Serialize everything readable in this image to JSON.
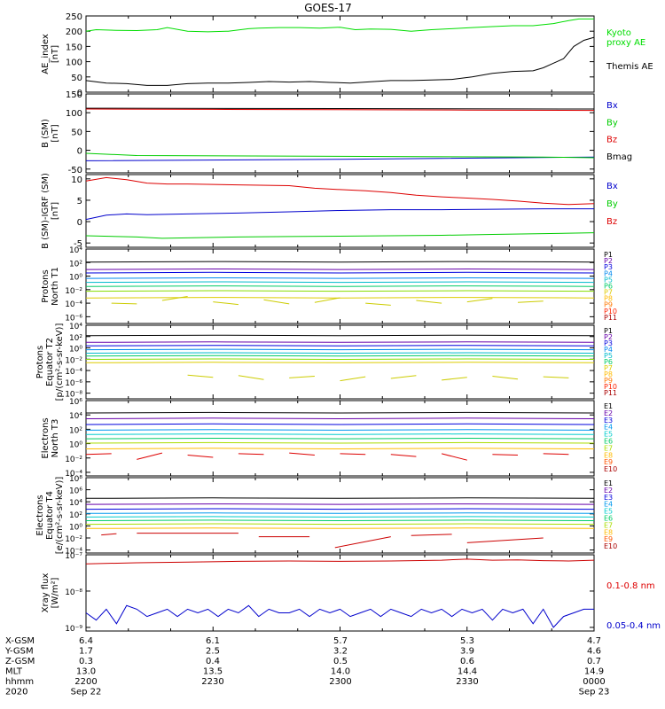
{
  "title": "GOES-17",
  "chart_data": [
    {
      "type": "line",
      "ylabel": [
        "AE_index",
        "[nT]"
      ],
      "yticks": [
        "250",
        "200",
        "150",
        "100",
        "50",
        "0"
      ],
      "ylim": [
        0,
        250
      ],
      "legend": [
        {
          "text": "Kyoto",
          "color": "#00dd00"
        },
        {
          "text": "proxy AE",
          "color": "#00dd00"
        },
        {
          "text": "Themis AE",
          "color": "#000000"
        }
      ],
      "series": [
        {
          "name": "Kyoto proxy AE",
          "color": "#00dd00",
          "x": [
            0,
            0.02,
            0.06,
            0.1,
            0.14,
            0.16,
            0.2,
            0.24,
            0.28,
            0.32,
            0.34,
            0.38,
            0.42,
            0.46,
            0.5,
            0.53,
            0.56,
            0.6,
            0.64,
            0.68,
            0.72,
            0.76,
            0.8,
            0.84,
            0.88,
            0.92,
            0.95,
            0.97,
            1
          ],
          "y": [
            200,
            205,
            203,
            202,
            205,
            212,
            200,
            198,
            200,
            208,
            210,
            212,
            212,
            210,
            213,
            205,
            207,
            206,
            200,
            205,
            208,
            212,
            215,
            218,
            218,
            225,
            235,
            240,
            240
          ]
        },
        {
          "name": "Themis AE",
          "color": "#000000",
          "x": [
            0,
            0.04,
            0.08,
            0.12,
            0.16,
            0.2,
            0.24,
            0.28,
            0.32,
            0.36,
            0.4,
            0.44,
            0.48,
            0.52,
            0.56,
            0.6,
            0.64,
            0.68,
            0.72,
            0.76,
            0.8,
            0.84,
            0.88,
            0.9,
            0.92,
            0.94,
            0.96,
            0.98,
            1
          ],
          "y": [
            38,
            30,
            28,
            22,
            22,
            28,
            30,
            30,
            32,
            35,
            33,
            35,
            32,
            30,
            34,
            38,
            38,
            40,
            42,
            50,
            62,
            68,
            70,
            80,
            95,
            110,
            150,
            170,
            180
          ]
        }
      ]
    },
    {
      "type": "line",
      "ylabel": [
        "B (SM)",
        "[nT]"
      ],
      "yticks": [
        "150",
        "100",
        "50",
        "0",
        "-50"
      ],
      "ylim": [
        -60,
        150
      ],
      "legend": [
        {
          "text": "Bx",
          "color": "#0000cc"
        },
        {
          "text": "By",
          "color": "#00cc00"
        },
        {
          "text": "Bz",
          "color": "#dd0000"
        },
        {
          "text": "Bmag",
          "color": "#000000"
        }
      ],
      "series": [
        {
          "name": "Bmag",
          "color": "#000000",
          "x": [
            0,
            0.5,
            1
          ],
          "y": [
            112,
            111,
            110
          ]
        },
        {
          "name": "Bz",
          "color": "#dd0000",
          "x": [
            0,
            0.25,
            0.5,
            0.75,
            1
          ],
          "y": [
            110,
            109,
            108,
            107,
            106
          ]
        },
        {
          "name": "Bx",
          "color": "#0000cc",
          "x": [
            0,
            0.5,
            1
          ],
          "y": [
            -28,
            -24,
            -18
          ]
        },
        {
          "name": "By",
          "color": "#00cc00",
          "x": [
            0,
            0.1,
            0.5,
            0.9,
            1
          ],
          "y": [
            -8,
            -14,
            -16,
            -18,
            -20
          ]
        }
      ]
    },
    {
      "type": "line",
      "ylabel": [
        "B (SM)-IGRF (SM)",
        "[nT]"
      ],
      "yticks": [
        "10",
        "5",
        "0",
        "-5"
      ],
      "ylim": [
        -6,
        11
      ],
      "legend": [
        {
          "text": "Bx",
          "color": "#0000cc"
        },
        {
          "text": "By",
          "color": "#00cc00"
        },
        {
          "text": "Bz",
          "color": "#dd0000"
        }
      ],
      "series": [
        {
          "name": "Bz",
          "color": "#dd0000",
          "x": [
            0,
            0.04,
            0.08,
            0.12,
            0.16,
            0.2,
            0.3,
            0.4,
            0.45,
            0.5,
            0.55,
            0.6,
            0.65,
            0.7,
            0.75,
            0.8,
            0.85,
            0.9,
            0.95,
            1
          ],
          "y": [
            9.5,
            10.3,
            9.8,
            9.0,
            8.8,
            8.8,
            8.6,
            8.4,
            7.8,
            7.5,
            7.2,
            6.8,
            6.2,
            5.8,
            5.5,
            5.2,
            4.8,
            4.3,
            4.0,
            4.2
          ]
        },
        {
          "name": "Bx",
          "color": "#0000cc",
          "x": [
            0,
            0.04,
            0.08,
            0.12,
            0.2,
            0.3,
            0.4,
            0.5,
            0.6,
            0.7,
            0.8,
            0.9,
            1
          ],
          "y": [
            0.5,
            1.5,
            1.8,
            1.6,
            1.8,
            2.0,
            2.3,
            2.6,
            2.8,
            2.8,
            2.9,
            3.0,
            3.0
          ]
        },
        {
          "name": "By",
          "color": "#00cc00",
          "x": [
            0,
            0.1,
            0.15,
            0.2,
            0.3,
            0.4,
            0.5,
            0.6,
            0.7,
            0.8,
            0.9,
            1
          ],
          "y": [
            -3.3,
            -3.6,
            -3.9,
            -3.8,
            -3.6,
            -3.5,
            -3.4,
            -3.3,
            -3.2,
            -3.0,
            -2.8,
            -2.6
          ]
        }
      ]
    },
    {
      "type": "line",
      "log": true,
      "ylabel": [
        "Protons",
        "North T1"
      ],
      "yticks": [
        [
          4,
          "10⁴"
        ],
        [
          2,
          "10²"
        ],
        [
          0,
          "10⁰"
        ],
        [
          -2,
          "10⁻²"
        ],
        [
          -4,
          "10⁻⁴"
        ],
        [
          -6,
          "10⁻⁶"
        ]
      ],
      "ylim": [
        -7,
        4
      ],
      "legend": [
        {
          "text": "P1",
          "color": "#000000"
        },
        {
          "text": "P2",
          "color": "#6600aa"
        },
        {
          "text": "P3",
          "color": "#0000dd"
        },
        {
          "text": "P4",
          "color": "#0088ee"
        },
        {
          "text": "P5",
          "color": "#00bbcc"
        },
        {
          "text": "P6",
          "color": "#00cc66"
        },
        {
          "text": "P7",
          "color": "#ddcc00"
        },
        {
          "text": "P8",
          "color": "#ffbb00"
        },
        {
          "text": "P9",
          "color": "#ff7700"
        },
        {
          "text": "P10",
          "color": "#ff2200"
        },
        {
          "text": "P11",
          "color": "#aa0000"
        }
      ],
      "levels": [
        2.1,
        1.0,
        0.5,
        -0.3,
        -0.9,
        -1.5,
        -2.2,
        -3.2
      ],
      "noisy": {
        "color": "#cccc00",
        "x": [
          0.05,
          0.1,
          0.15,
          0.2,
          0.25,
          0.3,
          0.35,
          0.4,
          0.45,
          0.5,
          0.55,
          0.6,
          0.65,
          0.7,
          0.75,
          0.8,
          0.85,
          0.9,
          0.95
        ],
        "y": [
          -4.0,
          -4.1,
          -3.6,
          -3.0,
          -3.8,
          -4.2,
          -3.5,
          -4.1,
          -3.9,
          -3.2,
          -4.0,
          -4.3,
          -3.6,
          -4.0,
          -3.8,
          -3.3,
          -3.9,
          -3.7,
          -4.0
        ]
      }
    },
    {
      "type": "line",
      "log": true,
      "ylabel": [
        "Protons",
        "Equator T2",
        "[p/(cm²-s-sr-keV)]"
      ],
      "yticks": [
        [
          4,
          "10⁴"
        ],
        [
          2,
          "10²"
        ],
        [
          0,
          "10⁰"
        ],
        [
          -2,
          "10⁻²"
        ],
        [
          -4,
          "10⁻⁴"
        ],
        [
          -6,
          "10⁻⁶"
        ],
        [
          -8,
          "10⁻⁸"
        ]
      ],
      "ylim": [
        -9,
        4
      ],
      "legend": [
        {
          "text": "P1",
          "color": "#000000"
        },
        {
          "text": "P2",
          "color": "#6600aa"
        },
        {
          "text": "P3",
          "color": "#0000dd"
        },
        {
          "text": "P4",
          "color": "#0088ee"
        },
        {
          "text": "P5",
          "color": "#00bbcc"
        },
        {
          "text": "P6",
          "color": "#00cc66"
        },
        {
          "text": "P7",
          "color": "#ddcc00"
        },
        {
          "text": "P8",
          "color": "#ffbb00"
        },
        {
          "text": "P9",
          "color": "#ff7700"
        },
        {
          "text": "P10",
          "color": "#ff2200"
        },
        {
          "text": "P11",
          "color": "#aa0000"
        }
      ],
      "levels": [
        2.2,
        1.0,
        0.4,
        -0.3,
        -0.9,
        -1.4,
        -2.0,
        -2.6
      ],
      "noisy": {
        "color": "#cccc00",
        "x": [
          0.2,
          0.25,
          0.3,
          0.35,
          0.4,
          0.45,
          0.5,
          0.55,
          0.6,
          0.65,
          0.7,
          0.75,
          0.8,
          0.85,
          0.9,
          0.95
        ],
        "y": [
          -4.8,
          -5.2,
          -4.9,
          -5.6,
          -5.3,
          -5.0,
          -5.8,
          -5.1,
          -5.4,
          -4.9,
          -5.7,
          -5.2,
          -5.0,
          -5.5,
          -5.1,
          -5.3
        ]
      }
    },
    {
      "type": "line",
      "log": true,
      "ylabel": [
        "Electrons",
        "North T3"
      ],
      "yticks": [
        [
          6,
          "10⁶"
        ],
        [
          4,
          "10⁴"
        ],
        [
          2,
          "10²"
        ],
        [
          0,
          "10⁰"
        ],
        [
          -2,
          "10⁻²"
        ],
        [
          -4,
          "10⁻⁴"
        ]
      ],
      "ylim": [
        -4.5,
        6
      ],
      "legend": [
        {
          "text": "E1",
          "color": "#000000"
        },
        {
          "text": "E2",
          "color": "#6600aa"
        },
        {
          "text": "E3",
          "color": "#0000dd"
        },
        {
          "text": "E4",
          "color": "#0099ee"
        },
        {
          "text": "E5",
          "color": "#00cccc"
        },
        {
          "text": "E6",
          "color": "#00cc66"
        },
        {
          "text": "E7",
          "color": "#aadd00"
        },
        {
          "text": "E8",
          "color": "#ffbb00"
        },
        {
          "text": "E9",
          "color": "#ff5500"
        },
        {
          "text": "E10",
          "color": "#aa0000"
        }
      ],
      "levels": [
        4.3,
        3.5,
        2.7,
        1.9,
        1.3,
        0.7,
        0.1,
        -0.7
      ],
      "noisy": {
        "color": "#dd0000",
        "x": [
          0,
          0.05,
          0.1,
          0.15,
          0.2,
          0.25,
          0.3,
          0.35,
          0.4,
          0.45,
          0.5,
          0.55,
          0.6,
          0.65,
          0.7,
          0.75,
          0.8,
          0.85,
          0.9,
          0.95,
          1
        ],
        "y": [
          -1.5,
          -1.4,
          -2.2,
          -1.3,
          -1.6,
          -1.9,
          -1.4,
          -1.5,
          -1.3,
          -1.6,
          -1.4,
          -1.5,
          -1.5,
          -1.8,
          -1.4,
          -2.3,
          -1.5,
          -1.6,
          -1.4,
          -1.5,
          -1.5
        ]
      }
    },
    {
      "type": "line",
      "log": true,
      "ylabel": [
        "Electrons",
        "Equator T4",
        "[e/(cm²-s-sr-keV)]"
      ],
      "yticks": [
        [
          8,
          "10⁸"
        ],
        [
          6,
          "10⁶"
        ],
        [
          4,
          "10⁴"
        ],
        [
          2,
          "10²"
        ],
        [
          0,
          "10⁰"
        ],
        [
          -2,
          "10⁻²"
        ],
        [
          -4,
          "10⁻⁴"
        ]
      ],
      "ylim": [
        -4.5,
        8
      ],
      "legend": [
        {
          "text": "E1",
          "color": "#000000"
        },
        {
          "text": "E2",
          "color": "#6600aa"
        },
        {
          "text": "E3",
          "color": "#0000dd"
        },
        {
          "text": "E4",
          "color": "#0099ee"
        },
        {
          "text": "E5",
          "color": "#00cccc"
        },
        {
          "text": "E6",
          "color": "#00cc66"
        },
        {
          "text": "E7",
          "color": "#aadd00"
        },
        {
          "text": "E8",
          "color": "#ffbb00"
        },
        {
          "text": "E9",
          "color": "#ff5500"
        },
        {
          "text": "E10",
          "color": "#aa0000"
        }
      ],
      "levels": [
        4.6,
        3.6,
        2.8,
        2.1,
        1.5,
        0.9,
        0.3,
        -0.4
      ],
      "noisy": {
        "color": "#cc0000",
        "x": [
          0.03,
          0.06,
          0.1,
          0.3,
          0.34,
          0.44,
          0.49,
          0.6,
          0.64,
          0.72,
          0.75,
          0.9,
          0.94
        ],
        "y": [
          -1.5,
          -1.3,
          -1.2,
          -1.2,
          -1.8,
          -1.8,
          -3.6,
          -1.8,
          -1.6,
          -1.4,
          -2.8,
          -2.0,
          -2.8
        ]
      }
    },
    {
      "type": "line",
      "log": true,
      "ylabel": [
        "Xray flux",
        "[W/m²]"
      ],
      "yticks": [
        [
          -7,
          "10⁻⁷"
        ],
        [
          -8,
          "10⁻⁸"
        ],
        [
          -9,
          "10⁻⁹"
        ]
      ],
      "ylim": [
        -9.1,
        -7
      ],
      "legend": [
        {
          "text": "0.1-0.8 nm",
          "color": "#dd0000"
        },
        {
          "text": "0.05-0.4 nm",
          "color": "#0000cc"
        }
      ],
      "series": [
        {
          "name": "0.1-0.8 nm",
          "color": "#cc0000",
          "x": [
            0,
            0.1,
            0.2,
            0.3,
            0.4,
            0.5,
            0.6,
            0.7,
            0.75,
            0.8,
            0.85,
            0.9,
            0.95,
            1
          ],
          "y": [
            -7.25,
            -7.22,
            -7.2,
            -7.18,
            -7.17,
            -7.18,
            -7.17,
            -7.15,
            -7.12,
            -7.15,
            -7.14,
            -7.16,
            -7.17,
            -7.15
          ]
        },
        {
          "name": "0.05-0.4 nm",
          "color": "#0000cc",
          "x": [
            0,
            0.02,
            0.04,
            0.06,
            0.08,
            0.1,
            0.12,
            0.14,
            0.16,
            0.18,
            0.2,
            0.22,
            0.24,
            0.26,
            0.28,
            0.3,
            0.32,
            0.34,
            0.36,
            0.38,
            0.4,
            0.42,
            0.44,
            0.46,
            0.48,
            0.5,
            0.52,
            0.54,
            0.56,
            0.58,
            0.6,
            0.62,
            0.64,
            0.66,
            0.68,
            0.7,
            0.72,
            0.74,
            0.76,
            0.78,
            0.8,
            0.82,
            0.84,
            0.86,
            0.88,
            0.9,
            0.92,
            0.94,
            0.96,
            0.98,
            1
          ],
          "y": [
            -8.6,
            -8.8,
            -8.5,
            -8.9,
            -8.4,
            -8.5,
            -8.7,
            -8.6,
            -8.5,
            -8.7,
            -8.5,
            -8.6,
            -8.5,
            -8.7,
            -8.5,
            -8.6,
            -8.4,
            -8.7,
            -8.5,
            -8.6,
            -8.6,
            -8.5,
            -8.7,
            -8.5,
            -8.6,
            -8.5,
            -8.7,
            -8.6,
            -8.5,
            -8.7,
            -8.5,
            -8.6,
            -8.7,
            -8.5,
            -8.6,
            -8.5,
            -8.7,
            -8.5,
            -8.6,
            -8.5,
            -8.8,
            -8.5,
            -8.6,
            -8.5,
            -8.9,
            -8.5,
            -9.0,
            -8.7,
            -8.6,
            -8.5,
            -8.5
          ]
        }
      ]
    }
  ],
  "footer": {
    "rows": [
      {
        "label": "X-GSM",
        "values": [
          "6.4",
          "6.1",
          "5.7",
          "5.3",
          "4.7"
        ]
      },
      {
        "label": "Y-GSM",
        "values": [
          "1.7",
          "2.5",
          "3.2",
          "3.9",
          "4.6"
        ]
      },
      {
        "label": "Z-GSM",
        "values": [
          "0.3",
          "0.4",
          "0.5",
          "0.6",
          "0.7"
        ]
      },
      {
        "label": "MLT",
        "values": [
          "13.0",
          "13.5",
          "14.0",
          "14.4",
          "14.9"
        ]
      },
      {
        "label": "hhmm",
        "values": [
          "2200",
          "2230",
          "2300",
          "2330",
          "0000"
        ]
      },
      {
        "label": "2020",
        "values": [
          "Sep 22",
          "",
          "",
          "",
          "Sep 23"
        ]
      }
    ]
  },
  "colors": {
    "proton_levels": [
      "#000000",
      "#6600aa",
      "#0000dd",
      "#0088ee",
      "#00bbcc",
      "#00cc66",
      "#88dd00",
      "#ddcc00"
    ],
    "electron_levels": [
      "#000000",
      "#6600aa",
      "#0000dd",
      "#0099ee",
      "#00cccc",
      "#00cc66",
      "#aadd00",
      "#ffbb00"
    ]
  }
}
